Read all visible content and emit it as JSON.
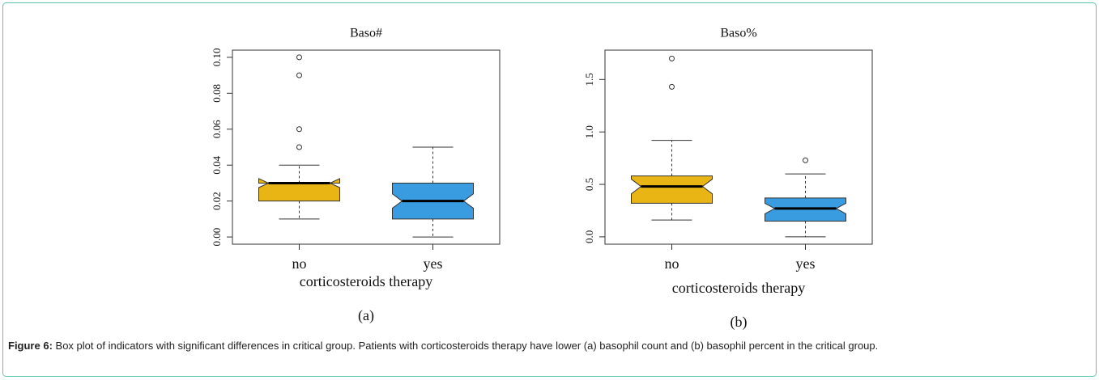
{
  "chart_data": [
    {
      "type": "boxplot",
      "title": "Baso#",
      "x_label": "corticosteroids therapy",
      "panel_label": "(a)",
      "categories": [
        "no",
        "yes"
      ],
      "colors": [
        "#e8b514",
        "#3a9ce0"
      ],
      "boxes": [
        {
          "whisker_low": 0.01,
          "q1": 0.02,
          "median": 0.03,
          "q3": 0.03,
          "whisker_high": 0.04,
          "notch": [
            0.0275,
            0.0325
          ],
          "outliers": [
            0.05,
            0.06,
            0.09,
            0.1
          ]
        },
        {
          "whisker_low": 0.0,
          "q1": 0.01,
          "median": 0.02,
          "q3": 0.03,
          "whisker_high": 0.05,
          "notch": [
            0.016,
            0.024
          ],
          "outliers": []
        }
      ],
      "ylim": [
        -0.004,
        0.104
      ],
      "yticks": [
        {
          "value": 0,
          "label": "0.00"
        },
        {
          "value": 0.02,
          "label": "0.02"
        },
        {
          "value": 0.04,
          "label": "0.04"
        },
        {
          "value": 0.06,
          "label": "0.06"
        },
        {
          "value": 0.08,
          "label": "0.08"
        },
        {
          "value": 0.1,
          "label": "0.10"
        }
      ]
    },
    {
      "type": "boxplot",
      "title": "Baso%",
      "x_label": "corticosteroids therapy",
      "panel_label": "(b)",
      "categories": [
        "no",
        "yes"
      ],
      "colors": [
        "#e8b514",
        "#3a9ce0"
      ],
      "boxes": [
        {
          "whisker_low": 0.16,
          "q1": 0.32,
          "median": 0.48,
          "q3": 0.58,
          "whisker_high": 0.92,
          "notch": [
            0.41,
            0.55
          ],
          "outliers": [
            1.43,
            1.7
          ]
        },
        {
          "whisker_low": 0.0,
          "q1": 0.15,
          "median": 0.27,
          "q3": 0.37,
          "whisker_high": 0.6,
          "notch": [
            0.22,
            0.32
          ],
          "outliers": [
            0.73
          ]
        }
      ],
      "ylim": [
        -0.07,
        1.78
      ],
      "yticks": [
        {
          "value": 0,
          "label": "0.0"
        },
        {
          "value": 0.5,
          "label": "0.5"
        },
        {
          "value": 1,
          "label": "1.0"
        },
        {
          "value": 1.5,
          "label": "1.5"
        }
      ]
    }
  ],
  "caption": {
    "label": "Figure 6:",
    "text": "Box plot of indicators with significant differences in critical group. Patients with corticosteroids therapy have lower (a) basophil count and (b) basophil percent in the critical group."
  }
}
